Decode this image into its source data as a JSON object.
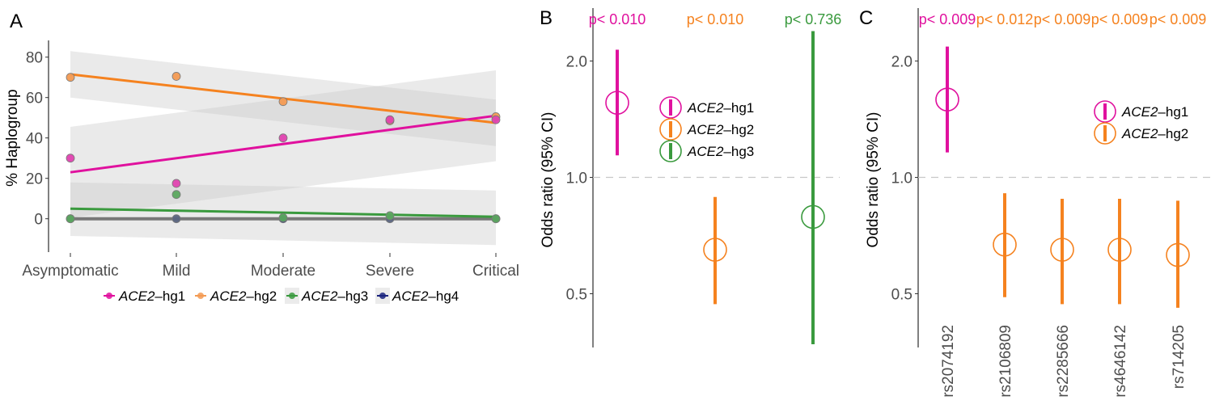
{
  "chart_data": [
    {
      "panel": "A",
      "type": "scatter",
      "title": "",
      "xlabel": "",
      "ylabel": "% Haplogroup",
      "categories": [
        "Asymptomatic",
        "Mild",
        "Moderate",
        "Severe",
        "Critical"
      ],
      "ylim": [
        -18,
        86
      ],
      "yticks": [
        0,
        20,
        40,
        60,
        80
      ],
      "grid": false,
      "legend_position": "bottom",
      "series": [
        {
          "name": "hg1",
          "label_italic": "ACE2",
          "label_suffix": "–hg1",
          "color": "#e0119e",
          "point_color": "#e042b0",
          "values": [
            30,
            17.5,
            40,
            49,
            49
          ],
          "trend": [
            23,
            51
          ],
          "ci_start": [
            0.5,
            45.5
          ],
          "ci_end": [
            28.5,
            73.5
          ]
        },
        {
          "name": "hg2",
          "label_italic": "ACE2",
          "label_suffix": "–hg2",
          "color": "#f5821f",
          "point_color": "#f39a52",
          "values": [
            70,
            70.5,
            58,
            48.5,
            50.5
          ],
          "trend": [
            71.5,
            47.5
          ],
          "ci_start": [
            60,
            83
          ],
          "ci_end": [
            36,
            59
          ]
        },
        {
          "name": "hg3",
          "label_italic": "ACE2",
          "label_suffix": "–hg3",
          "color": "#3a9a3e",
          "point_color": "#5ba65e",
          "values": [
            0,
            12,
            0.5,
            1.5,
            0
          ],
          "trend": [
            5,
            1
          ],
          "ci_start": [
            -8.5,
            18
          ],
          "ci_end": [
            -13,
            14
          ]
        },
        {
          "name": "hg4",
          "label_italic": "ACE2",
          "label_suffix": "–hg4",
          "color": "#787878",
          "point_color": "#5a6480",
          "values": [
            0,
            0,
            0,
            0,
            0
          ],
          "trend": [
            0,
            0
          ],
          "ci_start": [
            -8.5,
            18
          ],
          "ci_end": [
            -13,
            14
          ]
        }
      ],
      "legend_key_colors": [
        "#e0119e",
        "#f39a52",
        "#3a9a3e",
        "#1a237e"
      ]
    },
    {
      "panel": "B",
      "type": "scatter",
      "subtype": "forest",
      "ylabel": "Odds ratio (95% CI)",
      "yscale": "log",
      "ylim": [
        0.36,
        2.45
      ],
      "yticks": [
        0.5,
        1.0,
        2.0
      ],
      "ytick_labels": [
        "0.5",
        "1.0",
        "2.0"
      ],
      "reference_line": 1.0,
      "legend_position": "inside-top-left",
      "points": [
        {
          "name": "hg1",
          "label_italic": "ACE2",
          "label_suffix": "–hg1",
          "color": "#e0119e",
          "or": 1.56,
          "lo": 1.14,
          "hi": 2.14,
          "p_label": "p< 0.010"
        },
        {
          "name": "hg2",
          "label_italic": "ACE2",
          "label_suffix": "–hg2",
          "color": "#f5821f",
          "or": 0.65,
          "lo": 0.47,
          "hi": 0.89,
          "p_label": "p< 0.010"
        },
        {
          "name": "hg3",
          "label_italic": "ACE2",
          "label_suffix": "–hg3",
          "color": "#3a9a3e",
          "or": 0.79,
          "lo": 0.37,
          "hi": 2.39,
          "p_label": "p< 0.736"
        }
      ]
    },
    {
      "panel": "C",
      "type": "scatter",
      "subtype": "forest",
      "ylabel": "Odds ratio (95% CI)",
      "yscale": "log",
      "ylim": [
        0.36,
        2.45
      ],
      "yticks": [
        0.5,
        1.0,
        2.0
      ],
      "ytick_labels": [
        "0.5",
        "1.0",
        "2.0"
      ],
      "reference_line": 1.0,
      "legend_position": "inside-top-right",
      "legend": [
        {
          "label_italic": "ACE2",
          "label_suffix": "–hg1",
          "color": "#e0119e"
        },
        {
          "label_italic": "ACE2",
          "label_suffix": "–hg2",
          "color": "#f5821f"
        }
      ],
      "points": [
        {
          "snp": "rs2074192",
          "color": "#e0119e",
          "or": 1.59,
          "lo": 1.16,
          "hi": 2.18,
          "p_label": "p< 0.009"
        },
        {
          "snp": "rs2106809",
          "color": "#f5821f",
          "or": 0.67,
          "lo": 0.49,
          "hi": 0.91,
          "p_label": "p< 0.012"
        },
        {
          "snp": "rs2285666",
          "color": "#f5821f",
          "or": 0.65,
          "lo": 0.47,
          "hi": 0.88,
          "p_label": "p< 0.009"
        },
        {
          "snp": "rs4646142",
          "color": "#f5821f",
          "or": 0.65,
          "lo": 0.47,
          "hi": 0.88,
          "p_label": "p< 0.009"
        },
        {
          "snp": "rs714205",
          "color": "#f5821f",
          "or": 0.63,
          "lo": 0.46,
          "hi": 0.87,
          "p_label": "p< 0.009"
        }
      ]
    }
  ],
  "panels": {
    "a_letter": "A",
    "b_letter": "B",
    "c_letter": "C"
  }
}
